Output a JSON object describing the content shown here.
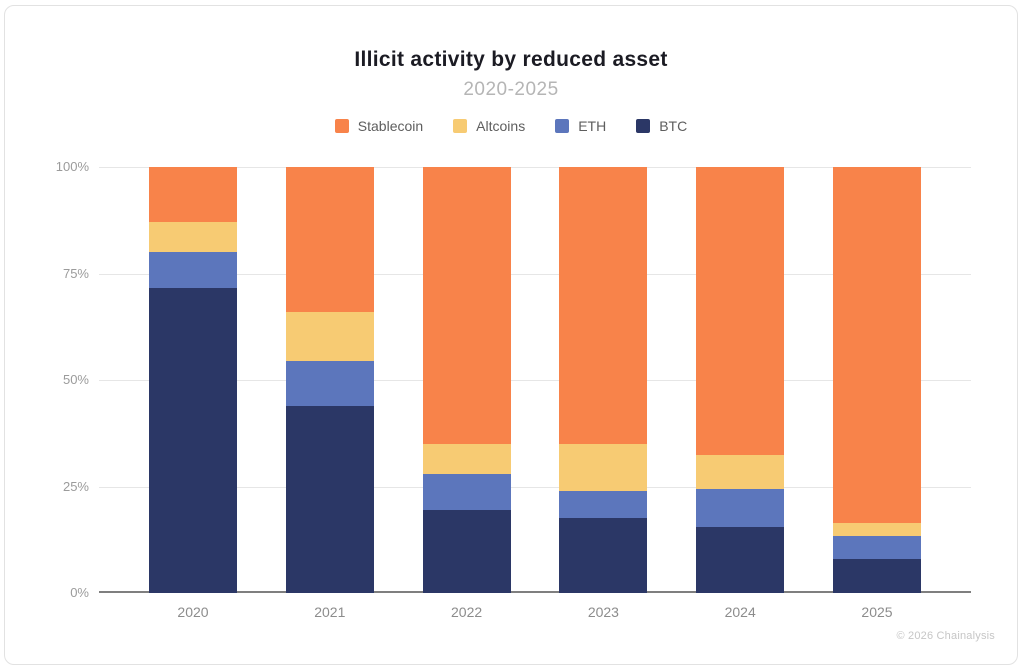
{
  "card": {
    "title": "Illicit activity by reduced asset",
    "subtitle": "2020-2025",
    "footer": "© 2026 Chainalysis"
  },
  "colors": {
    "stablecoin": "#F8834A",
    "altcoins": "#F7CB73",
    "eth": "#5C76BC",
    "btc": "#2B3766",
    "gridline": "#E6E6E6",
    "axis_line": "#7F7F7F",
    "title_text": "#1B1B23",
    "subtitle_text": "#B5B5B5",
    "legend_text": "#5E5E5E",
    "tick_text": "#9B9B9B",
    "footer_text": "#C6C6C6"
  },
  "chart_data": {
    "type": "bar",
    "stacked": true,
    "title": "Illicit activity by reduced asset",
    "subtitle": "2020-2025",
    "categories": [
      "2020",
      "2021",
      "2022",
      "2023",
      "2024",
      "2025"
    ],
    "series": [
      {
        "name": "Stablecoin",
        "color": "#F8834A",
        "values": [
          13,
          34,
          65,
          65,
          67.5,
          83.5
        ]
      },
      {
        "name": "Altcoins",
        "color": "#F7CB73",
        "values": [
          7,
          11.5,
          7,
          11,
          8,
          3
        ]
      },
      {
        "name": "ETH",
        "color": "#5C76BC",
        "values": [
          8.5,
          10.5,
          8.5,
          6.5,
          9,
          5.5
        ]
      },
      {
        "name": "BTC",
        "color": "#2B3766",
        "values": [
          71.5,
          44,
          19.5,
          17.5,
          15.5,
          8
        ]
      }
    ],
    "xlabel": "",
    "ylabel": "",
    "y_ticks": [
      "0%",
      "25%",
      "50%",
      "75%",
      "100%"
    ],
    "ylim": [
      0,
      100
    ],
    "unit": "percent",
    "grid": true,
    "legend_position": "top"
  }
}
